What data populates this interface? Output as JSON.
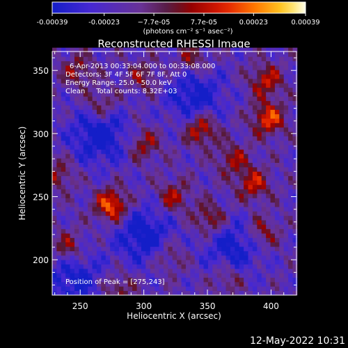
{
  "chart_data": {
    "type": "heatmap",
    "title": "Reconstructed RHESSI Image",
    "xlabel": "Heliocentric X (arcsec)",
    "ylabel": "Heliocentric Y (arcsec)",
    "xlim": [
      228,
      420
    ],
    "ylim": [
      172,
      365
    ],
    "xticks": [
      250,
      300,
      350,
      400
    ],
    "yticks": [
      200,
      250,
      300,
      350
    ],
    "colorbar": {
      "min": -0.00039,
      "max": 0.00039,
      "tick_values": [
        -0.00039,
        -0.00023,
        -7.7e-05,
        7.7e-05,
        0.00023,
        0.00039
      ],
      "tick_labels": [
        "-0.00039",
        "-0.00023",
        "−7.7e-05",
        "7.7e-05",
        "0.00023",
        "0.00039"
      ],
      "units_label": "(photons cm⁻² s⁻¹ asec⁻²)",
      "colormap": "blue-purple-red-orange-yellow-white"
    },
    "annotations": [
      "6-Apr-2013 00:33:04.000 to 00:33:08.000",
      "Detectors: 3F 4F 5F 6F 7F 8F, Att 0",
      "Energy Range: 25.0 - 50.0 keV",
      "Clean     Total counts: 8.32E+03"
    ],
    "peak_label": "Position of Peak = [275,243]",
    "peak": [
      275,
      243
    ],
    "sources": [
      {
        "x": 275,
        "y": 243,
        "value": 0.00039
      },
      {
        "x": 345,
        "y": 304,
        "value": 0.00031
      },
      {
        "x": 398,
        "y": 312,
        "value": 0.00033
      },
      {
        "x": 396,
        "y": 342,
        "value": 0.00026
      },
      {
        "x": 266,
        "y": 322,
        "value": 0.00022
      },
      {
        "x": 352,
        "y": 232,
        "value": 0.00024
      },
      {
        "x": 386,
        "y": 260,
        "value": 0.00026
      },
      {
        "x": 323,
        "y": 250,
        "value": 0.00022
      },
      {
        "x": 240,
        "y": 210,
        "value": 0.00021
      },
      {
        "x": 300,
        "y": 292,
        "value": 0.00021
      },
      {
        "x": 248,
        "y": 350,
        "value": 0.00019
      },
      {
        "x": 370,
        "y": 280,
        "value": 0.0002
      },
      {
        "x": 338,
        "y": 358,
        "value": 0.0002
      },
      {
        "x": 393,
        "y": 222,
        "value": 0.00021
      },
      {
        "x": 280,
        "y": 178,
        "value": 0.00018
      },
      {
        "x": 233,
        "y": 268,
        "value": 0.00018
      },
      {
        "x": 320,
        "y": 203,
        "value": 0.00016
      },
      {
        "x": 366,
        "y": 186,
        "value": 0.00017
      },
      {
        "x": 300,
        "y": 345,
        "value": 0.00017
      }
    ],
    "negative_regions": [
      {
        "x": 265,
        "y": 300,
        "value": -0.00028
      },
      {
        "x": 300,
        "y": 220,
        "value": -0.00026
      },
      {
        "x": 340,
        "y": 330,
        "value": -0.00024
      },
      {
        "x": 370,
        "y": 210,
        "value": -0.00023
      },
      {
        "x": 245,
        "y": 185,
        "value": -0.00022
      }
    ]
  },
  "footer": {
    "timestamp": "12-May-2022 10:31"
  }
}
